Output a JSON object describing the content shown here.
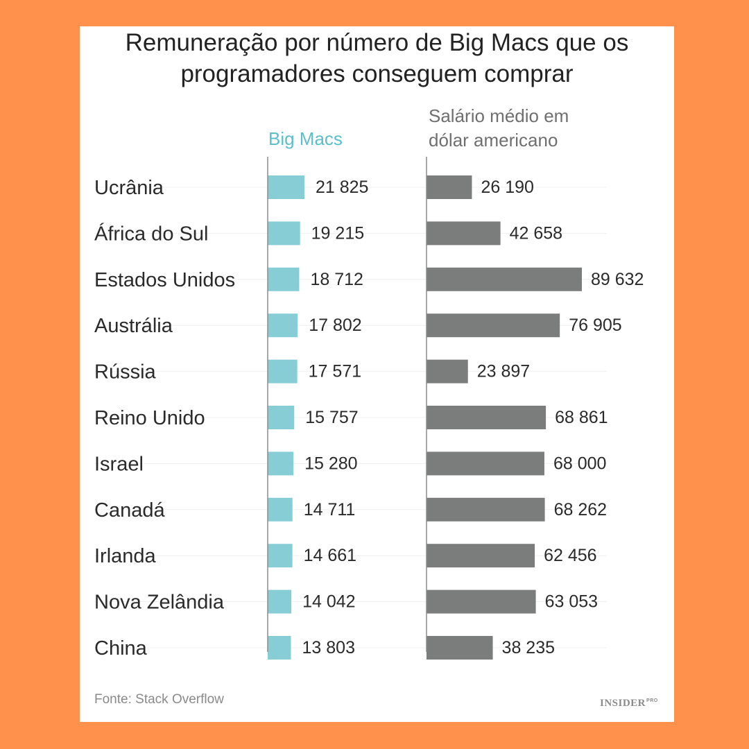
{
  "title_lines": [
    "Remuneração por número de Big Macs que os",
    "programadores conseguem comprar"
  ],
  "source": "Fonte: Stack Overflow",
  "logo": {
    "main": "INSIDER",
    "suffix": "PRO"
  },
  "colors": {
    "background": "#FF914D",
    "bigmac_bar": "#86CDD6",
    "salary_bar": "#7B7C7C",
    "bigmac_header": "#5BBFCB",
    "salary_header": "#6f6f6f",
    "text": "#2a2a2a"
  },
  "chart_data": {
    "type": "bar",
    "orientation": "horizontal",
    "categories": [
      "Ucrânia",
      "África do Sul",
      "Estados Unidos",
      "Austrália",
      "Rússia",
      "Reino Unido",
      "Israel",
      "Canadá",
      "Irlanda",
      "Nova Zelândia",
      "China"
    ],
    "series": [
      {
        "name": "Big Macs",
        "values": [
          21825,
          19215,
          18712,
          17802,
          17571,
          15757,
          15280,
          14711,
          14661,
          14042,
          13803
        ],
        "labels": [
          "21 825",
          "19 215",
          "18 712",
          "17 802",
          "17 571",
          "15 757",
          "15 280",
          "14 711",
          "14 661",
          "14 042",
          "13 803"
        ]
      },
      {
        "name_lines": [
          "Salário médio em",
          "dólar americano"
        ],
        "values": [
          26190,
          42658,
          89632,
          76905,
          23897,
          68861,
          68000,
          68262,
          62456,
          63053,
          38235
        ],
        "labels": [
          "26 190",
          "42 658",
          "89 632",
          "76 905",
          "23 897",
          "68 861",
          "68 000",
          "68 262",
          "62 456",
          "63 053",
          "38 235"
        ]
      }
    ],
    "grid": false,
    "legend": "column headers above bars"
  }
}
